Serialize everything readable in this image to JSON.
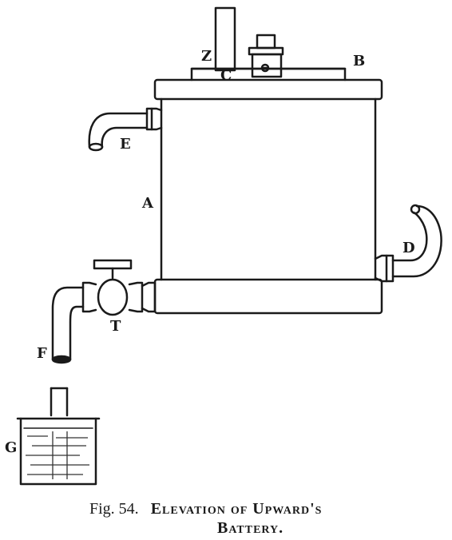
{
  "labels": {
    "A": "A",
    "B": "B",
    "C": "C",
    "D": "D",
    "E": "E",
    "F": "F",
    "G": "G",
    "T": "T",
    "Z": "Z"
  },
  "caption": {
    "fig_number": "Fig. 54.",
    "title_line1": "Elevation of Upward's",
    "title_line2": "Battery."
  }
}
